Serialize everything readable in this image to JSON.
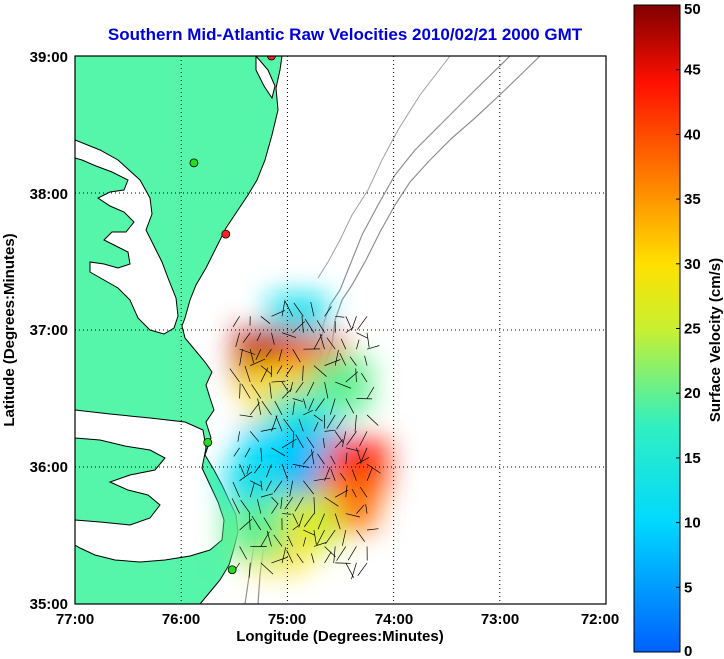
{
  "title": "Southern Mid-Atlantic Raw Velocities 2010/02/21 2000 GMT",
  "x_axis": {
    "label": "Longitude (Degrees:Minutes)",
    "ticks": [
      "77:00",
      "76:00",
      "75:00",
      "74:00",
      "73:00",
      "72:00"
    ]
  },
  "y_axis": {
    "label": "Latitude (Degrees:Minutes)",
    "ticks": [
      "39:00",
      "38:00",
      "37:00",
      "36:00",
      "35:00"
    ]
  },
  "colorbar": {
    "label": "Surface Velocity (cm/s)",
    "ticks": [
      "50",
      "45",
      "40",
      "35",
      "30",
      "25",
      "20",
      "15",
      "10",
      "5",
      "0"
    ],
    "min": 0,
    "max": 50
  },
  "chart_data": {
    "type": "heatmap",
    "xlim": [
      -77,
      -72
    ],
    "ylim": [
      35,
      39
    ],
    "grid": true,
    "land_color": "#55f5aa",
    "water_color": "#ffffff",
    "velocity_field": [
      {
        "lon": -74.9,
        "lat": 37.05,
        "v": 12
      },
      {
        "lon": -75.2,
        "lat": 36.8,
        "v": 47
      },
      {
        "lon": -74.75,
        "lat": 36.75,
        "v": 42
      },
      {
        "lon": -75.1,
        "lat": 36.55,
        "v": 30
      },
      {
        "lon": -74.5,
        "lat": 36.6,
        "v": 20
      },
      {
        "lon": -74.9,
        "lat": 36.35,
        "v": 16
      },
      {
        "lon": -75.15,
        "lat": 36.1,
        "v": 10
      },
      {
        "lon": -74.7,
        "lat": 36.1,
        "v": 8
      },
      {
        "lon": -74.35,
        "lat": 36.0,
        "v": 43
      },
      {
        "lon": -74.45,
        "lat": 35.75,
        "v": 38
      },
      {
        "lon": -75.0,
        "lat": 35.8,
        "v": 5
      },
      {
        "lon": -75.3,
        "lat": 35.85,
        "v": 12
      },
      {
        "lon": -74.8,
        "lat": 35.6,
        "v": 25
      },
      {
        "lon": -75.1,
        "lat": 35.45,
        "v": 30
      },
      {
        "lon": -75.3,
        "lat": 35.55,
        "v": 20
      }
    ],
    "stations": [
      {
        "lon": -75.15,
        "lat": 39.0,
        "color": "#ff2020"
      },
      {
        "lon": -75.88,
        "lat": 38.22,
        "color": "#22dd22"
      },
      {
        "lon": -75.58,
        "lat": 37.7,
        "color": "#ff2020"
      },
      {
        "lon": -75.75,
        "lat": 36.18,
        "color": "#22dd22"
      },
      {
        "lon": -75.52,
        "lat": 35.25,
        "color": "#22dd22"
      }
    ]
  }
}
